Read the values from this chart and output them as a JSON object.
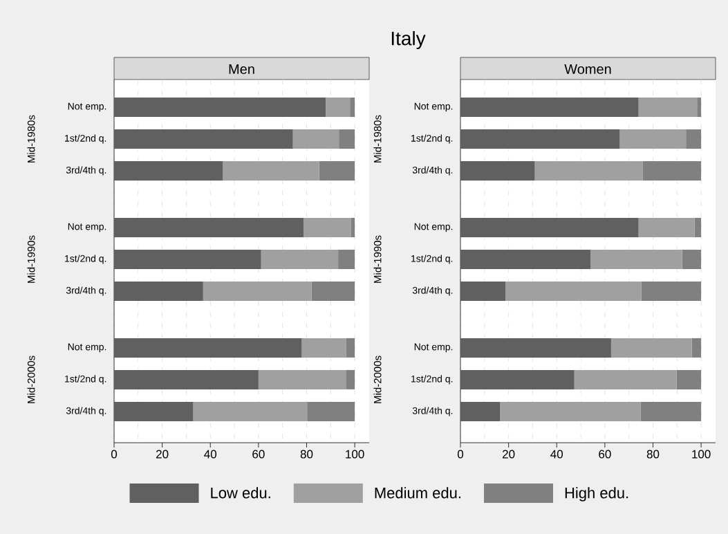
{
  "chart_data": [
    {
      "type": "other",
      "title": "Italy"
    },
    {
      "type": "bar",
      "orientation": "horizontal",
      "stacked": true,
      "subtitle": "Men",
      "categories": [
        "Not emp.",
        "1st/2nd q.",
        "3rd/4th q.",
        "Not emp.",
        "1st/2nd q.",
        "3rd/4th q.",
        "Not emp.",
        "1st/2nd q.",
        "3rd/4th q."
      ],
      "annotations": [
        "Mid-1980s",
        "Mid-1990s",
        "Mid-2000s"
      ],
      "series": [
        {
          "name": "Low edu.",
          "color": "#606060",
          "values": [
            88,
            74.3,
            45.2,
            78.7,
            61.1,
            37,
            78,
            60,
            32.9
          ]
        },
        {
          "name": "Medium edu.",
          "color": "#a0a0a0",
          "values": [
            10,
            19.1,
            40,
            19.8,
            32,
            45.1,
            18.5,
            36.3,
            47.3
          ]
        },
        {
          "name": "High edu.",
          "color": "#808080",
          "values": [
            2,
            6.6,
            14.8,
            1.5,
            6.9,
            17.9,
            3.5,
            3.7,
            19.8
          ]
        }
      ],
      "xlim": [
        0,
        106
      ],
      "xticks": [
        0,
        20,
        40,
        60,
        80,
        100
      ],
      "grid": "x",
      "legend": "bottom"
    },
    {
      "type": "bar",
      "orientation": "horizontal",
      "stacked": true,
      "subtitle": "Women",
      "categories": [
        "Not emp.",
        "1st/2nd q.",
        "3rd/4th q.",
        "Not emp.",
        "1st/2nd q.",
        "3rd/4th q.",
        "Not emp.",
        "1st/2nd q.",
        "3rd/4th q."
      ],
      "annotations": [
        "Mid-1980s",
        "Mid-1990s",
        "Mid-2000s"
      ],
      "series": [
        {
          "color": "#606060",
          "values": [
            74,
            66.2,
            30.9,
            74,
            54.1,
            18.7,
            62.6,
            47.3,
            16.5
          ]
        },
        {
          "color": "#a0a0a0",
          "values": [
            24.3,
            27.5,
            44.9,
            23.3,
            38,
            56.4,
            33.5,
            42.5,
            58.3
          ]
        },
        {
          "color": "#808080",
          "values": [
            1.7,
            6.3,
            24.2,
            2.7,
            7.9,
            24.9,
            3.9,
            10.2,
            25.2
          ]
        }
      ],
      "xlim": [
        0,
        106
      ],
      "xticks": [
        0,
        20,
        40,
        60,
        80,
        100
      ],
      "grid": "x"
    }
  ]
}
